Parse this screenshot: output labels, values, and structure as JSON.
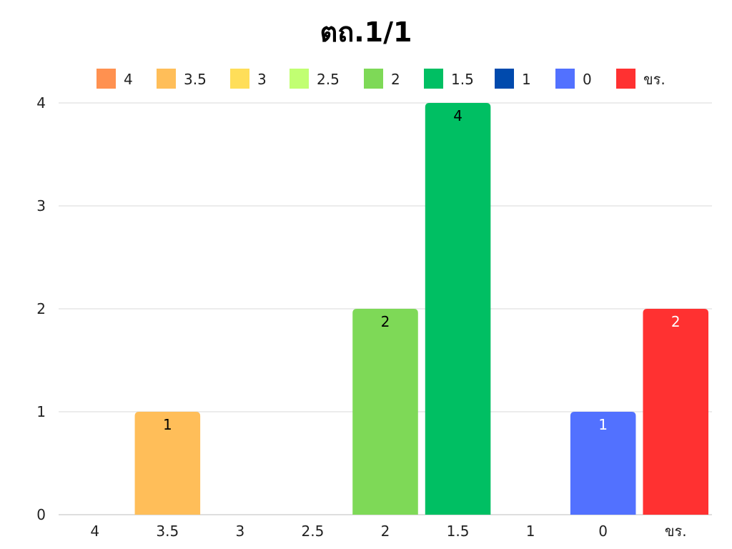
{
  "chart_data": {
    "type": "bar",
    "title": "ตถ.1/1",
    "xlabel": "",
    "ylabel": "",
    "categories": [
      "4",
      "3.5",
      "3",
      "2.5",
      "2",
      "1.5",
      "1",
      "0",
      "ขร."
    ],
    "values": [
      0,
      1,
      0,
      0,
      2,
      4,
      0,
      1,
      2
    ],
    "colors": [
      "#ff9150",
      "#ffbe59",
      "#ffde59",
      "#c1ff72",
      "#7ed957",
      "#00bf63",
      "#004aad",
      "#5271ff",
      "#ff3131"
    ],
    "label_colors": [
      "#000000",
      "#000000",
      "#000000",
      "#000000",
      "#000000",
      "#000000",
      "#ffffff",
      "#ffffff",
      "#ffffff"
    ],
    "ylim": [
      0,
      4
    ],
    "yticks": [
      0,
      1,
      2,
      3,
      4
    ],
    "grid": true,
    "legend_position": "top"
  }
}
